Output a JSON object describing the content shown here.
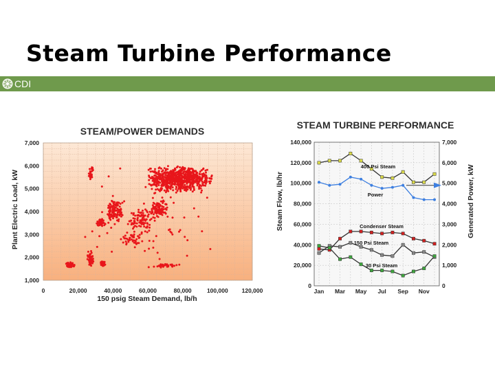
{
  "slide": {
    "title": "Steam Turbine Performance",
    "logo_text": "CDI",
    "bar_color": "#6f9a4c"
  },
  "chart_data": [
    {
      "type": "scatter",
      "title": "STEAM/POWER DEMANDS",
      "xlabel": "150 psig Steam Demand, lb/h",
      "ylabel": "Plant Electric Load, kW",
      "xlim": [
        0,
        120000
      ],
      "ylim": [
        1000,
        7000
      ],
      "xticks": [
        0,
        20000,
        40000,
        60000,
        80000,
        100000,
        120000
      ],
      "xtick_labels": [
        "0",
        "20,000",
        "40,000",
        "60,000",
        "80,000",
        "100,000",
        "120,000"
      ],
      "yticks": [
        1000,
        2000,
        3000,
        4000,
        5000,
        6000,
        7000
      ],
      "ytick_labels": [
        "1,000",
        "2,000",
        "3,000",
        "4,000",
        "5,000",
        "6,000",
        "7,000"
      ],
      "grid": true,
      "marker_color": "#e8161b",
      "background": "peach-orange gradient",
      "clusters": [
        {
          "x": [
            13000,
            18000
          ],
          "y": [
            1550,
            1800
          ],
          "n": 45
        },
        {
          "x": [
            25000,
            29000
          ],
          "y": [
            1600,
            2300
          ],
          "n": 50
        },
        {
          "x": [
            26000,
            29000
          ],
          "y": [
            5300,
            6000
          ],
          "n": 30
        },
        {
          "x": [
            30000,
            36000
          ],
          "y": [
            3300,
            3700
          ],
          "n": 45
        },
        {
          "x": [
            32000,
            36000
          ],
          "y": [
            1600,
            1900
          ],
          "n": 25
        },
        {
          "x": [
            36000,
            46000
          ],
          "y": [
            3500,
            4500
          ],
          "n": 110
        },
        {
          "x": [
            45000,
            58000
          ],
          "y": [
            2500,
            3100
          ],
          "n": 35
        },
        {
          "x": [
            50000,
            62000
          ],
          "y": [
            3000,
            4200
          ],
          "n": 70
        },
        {
          "x": [
            58000,
            98000
          ],
          "y": [
            4800,
            6000
          ],
          "n": 750
        },
        {
          "x": [
            60000,
            72000
          ],
          "y": [
            3700,
            4500
          ],
          "n": 90
        },
        {
          "x": [
            60000,
            80000
          ],
          "y": [
            1550,
            1750
          ],
          "n": 35
        },
        {
          "x": [
            20000,
            98000
          ],
          "y": [
            1500,
            6000
          ],
          "n": 90
        }
      ]
    },
    {
      "type": "line",
      "title": "STEAM TURBINE PERFORMANCE",
      "ylabel": "Steam Flow, lb/hr",
      "y2label": "Generated Power, kW",
      "categories": [
        "Jan",
        "Feb",
        "Mar",
        "Apr",
        "May",
        "Jun",
        "Jul",
        "Aug",
        "Sep",
        "Oct",
        "Nov",
        "Dec"
      ],
      "xtick_labels": [
        "Jan",
        "Mar",
        "May",
        "Jul",
        "Sep",
        "Nov"
      ],
      "ylim": [
        0,
        140000
      ],
      "yticks": [
        0,
        20000,
        40000,
        60000,
        80000,
        100000,
        120000,
        140000
      ],
      "ytick_labels": [
        "0",
        "20,000",
        "40,000",
        "60,000",
        "80,000",
        "100,000",
        "120,000",
        "140,000"
      ],
      "y2lim": [
        0,
        7000
      ],
      "y2ticks": [
        0,
        1000,
        2000,
        3000,
        4000,
        5000,
        6000,
        7000
      ],
      "y2tick_labels": [
        "0",
        "1,000",
        "2,000",
        "3,000",
        "4,000",
        "5,000",
        "6,000",
        "7,000"
      ],
      "grid": true,
      "series": [
        {
          "name": "400 Psi Steam",
          "axis": "left",
          "color": "#d8d84a",
          "values": [
            120000,
            122000,
            122000,
            129000,
            122000,
            114000,
            106000,
            105000,
            111000,
            101000,
            101000,
            109000
          ]
        },
        {
          "name": "Power",
          "axis": "right",
          "color": "#3d7fe0",
          "values": [
            5050,
            4900,
            4950,
            5300,
            5200,
            4900,
            4750,
            4800,
            4900,
            4300,
            4200,
            4200
          ]
        },
        {
          "name": "Condenser Steam",
          "axis": "left",
          "color": "#d22020",
          "values": [
            36000,
            35000,
            46000,
            53000,
            53000,
            52000,
            51000,
            52000,
            51000,
            46000,
            44000,
            41000
          ]
        },
        {
          "name": "150 Psi Steam",
          "axis": "left",
          "color": "#888888",
          "values": [
            32000,
            39000,
            38000,
            42000,
            38000,
            35000,
            30000,
            29000,
            40000,
            32000,
            33000,
            28000
          ]
        },
        {
          "name": "30 Psi Steam",
          "axis": "left",
          "color": "#3ea63e",
          "values": [
            39000,
            37000,
            26000,
            28000,
            21000,
            15000,
            15000,
            14000,
            10000,
            14000,
            17000,
            29000
          ]
        }
      ]
    }
  ]
}
